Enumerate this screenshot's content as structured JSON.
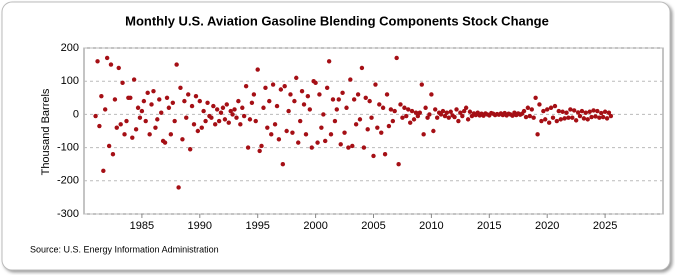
{
  "chart_data": {
    "type": "scatter",
    "title": "Monthly U.S. Aviation Gasoline Blending Components Stock Change",
    "y_label": "Thousand Barrels",
    "source": "Source: U.S. Energy Information Administration",
    "color": "#a50f15",
    "grid": true,
    "xlim": [
      1980,
      2030
    ],
    "xticks": [
      1985,
      1990,
      1995,
      2000,
      2005,
      2010,
      2015,
      2020,
      2025
    ],
    "ylim": [
      -300,
      200
    ],
    "yticks": [
      200,
      100,
      0,
      -100,
      -200,
      -300
    ],
    "x": [
      1981,
      1981.17,
      1981.33,
      1981.5,
      1981.67,
      1981.83,
      1982,
      1982.17,
      1982.33,
      1982.5,
      1982.67,
      1982.83,
      1983,
      1983.17,
      1983.33,
      1983.5,
      1983.67,
      1983.83,
      1984,
      1984.17,
      1984.33,
      1984.5,
      1984.67,
      1984.83,
      1985,
      1985.17,
      1985.33,
      1985.5,
      1985.67,
      1985.83,
      1986,
      1986.17,
      1986.33,
      1986.5,
      1986.67,
      1986.83,
      1987,
      1987.17,
      1987.33,
      1987.5,
      1987.67,
      1987.83,
      1988,
      1988.17,
      1988.33,
      1988.5,
      1988.67,
      1988.83,
      1989,
      1989.17,
      1989.33,
      1989.5,
      1989.67,
      1989.83,
      1990,
      1990.17,
      1990.33,
      1990.5,
      1990.67,
      1990.83,
      1991,
      1991.17,
      1991.33,
      1991.5,
      1991.67,
      1991.83,
      1992,
      1992.17,
      1992.33,
      1992.5,
      1992.67,
      1992.83,
      1993,
      1993.17,
      1993.33,
      1993.5,
      1993.67,
      1993.83,
      1994,
      1994.17,
      1994.33,
      1994.5,
      1994.67,
      1994.83,
      1995,
      1995.17,
      1995.33,
      1995.5,
      1995.67,
      1995.83,
      1996,
      1996.17,
      1996.33,
      1996.5,
      1996.67,
      1996.83,
      1997,
      1997.17,
      1997.33,
      1997.5,
      1997.67,
      1997.83,
      1998,
      1998.17,
      1998.33,
      1998.5,
      1998.67,
      1998.83,
      1999,
      1999.17,
      1999.33,
      1999.5,
      1999.67,
      1999.83,
      2000,
      2000.17,
      2000.33,
      2000.5,
      2000.67,
      2000.83,
      2001,
      2001.17,
      2001.33,
      2001.5,
      2001.67,
      2001.83,
      2002,
      2002.17,
      2002.33,
      2002.5,
      2002.67,
      2002.83,
      2003,
      2003.17,
      2003.33,
      2003.5,
      2003.67,
      2003.83,
      2004,
      2004.17,
      2004.33,
      2004.5,
      2004.67,
      2004.83,
      2005,
      2005.17,
      2005.33,
      2005.5,
      2005.67,
      2005.83,
      2006,
      2006.17,
      2006.33,
      2006.5,
      2006.67,
      2006.83,
      2007,
      2007.17,
      2007.33,
      2007.5,
      2007.67,
      2007.83,
      2008,
      2008.17,
      2008.33,
      2008.5,
      2008.67,
      2008.83,
      2009,
      2009.17,
      2009.33,
      2009.5,
      2009.67,
      2009.83,
      2010,
      2010.17,
      2010.33,
      2010.5,
      2010.67,
      2010.83,
      2011,
      2011.17,
      2011.33,
      2011.5,
      2011.67,
      2011.83,
      2012,
      2012.17,
      2012.33,
      2012.5,
      2012.67,
      2012.83,
      2013,
      2013.17,
      2013.33,
      2013.5,
      2013.67,
      2013.83,
      2014,
      2014.17,
      2014.33,
      2014.5,
      2014.67,
      2014.83,
      2015,
      2015.17,
      2015.33,
      2015.5,
      2015.67,
      2015.83,
      2016,
      2016.17,
      2016.33,
      2016.5,
      2016.67,
      2016.83,
      2017,
      2017.17,
      2017.33,
      2017.5,
      2017.67,
      2017.83,
      2018,
      2018.17,
      2018.33,
      2018.5,
      2018.67,
      2018.83,
      2019,
      2019.17,
      2019.33,
      2019.5,
      2019.67,
      2019.83,
      2020,
      2020.17,
      2020.33,
      2020.5,
      2020.67,
      2020.83,
      2021,
      2021.17,
      2021.33,
      2021.5,
      2021.67,
      2021.83,
      2022,
      2022.17,
      2022.33,
      2022.5,
      2022.67,
      2022.83,
      2023,
      2023.17,
      2023.33,
      2023.5,
      2023.67,
      2023.83,
      2024,
      2024.17,
      2024.33,
      2024.5,
      2024.67,
      2024.83,
      2025,
      2025.17,
      2025.33,
      2025.5
    ],
    "values": [
      -5,
      160,
      -35,
      55,
      -170,
      15,
      170,
      -95,
      150,
      -120,
      45,
      -40,
      140,
      -30,
      95,
      -60,
      -20,
      50,
      50,
      -70,
      105,
      -45,
      20,
      -10,
      10,
      40,
      -20,
      65,
      -60,
      30,
      70,
      -40,
      -15,
      45,
      5,
      -80,
      -85,
      50,
      20,
      -60,
      35,
      -20,
      150,
      -220,
      80,
      -75,
      40,
      -10,
      60,
      -105,
      25,
      -30,
      55,
      -50,
      40,
      -40,
      10,
      -20,
      35,
      -5,
      -10,
      25,
      -30,
      15,
      -20,
      5,
      20,
      -15,
      30,
      -25,
      10,
      0,
      15,
      -10,
      40,
      -30,
      20,
      -5,
      85,
      -100,
      -15,
      35,
      60,
      -20,
      135,
      -110,
      -95,
      20,
      80,
      -40,
      40,
      -60,
      90,
      -30,
      25,
      -75,
      75,
      -150,
      85,
      -50,
      10,
      60,
      -55,
      40,
      110,
      -85,
      -20,
      70,
      30,
      -60,
      55,
      15,
      -100,
      100,
      95,
      -85,
      60,
      -40,
      0,
      -80,
      80,
      160,
      -60,
      45,
      -20,
      15,
      45,
      -90,
      65,
      -55,
      20,
      -100,
      105,
      -95,
      45,
      -30,
      60,
      -15,
      140,
      -100,
      50,
      -45,
      40,
      -10,
      -125,
      90,
      -40,
      30,
      -55,
      20,
      -120,
      60,
      -35,
      15,
      -20,
      10,
      170,
      -150,
      30,
      -10,
      20,
      -5,
      15,
      -25,
      10,
      -15,
      5,
      -5,
      5,
      90,
      -60,
      20,
      -10,
      0,
      60,
      -50,
      15,
      -10,
      5,
      0,
      10,
      -5,
      5,
      -10,
      8,
      -3,
      -8,
      15,
      -20,
      5,
      -5,
      10,
      20,
      -15,
      8,
      -5,
      3,
      -2,
      5,
      -3,
      2,
      -4,
      3,
      0,
      -3,
      4,
      2,
      -2,
      1,
      -1,
      3,
      -2,
      4,
      -3,
      2,
      0,
      -4,
      5,
      -2,
      3,
      -1,
      2,
      10,
      -8,
      20,
      -5,
      15,
      -10,
      50,
      -60,
      30,
      -20,
      10,
      -15,
      15,
      -25,
      20,
      -10,
      25,
      -20,
      10,
      -15,
      8,
      -12,
      5,
      -10,
      15,
      -10,
      12,
      -18,
      6,
      -5,
      10,
      -12,
      5,
      -15,
      8,
      -8,
      12,
      -6,
      10,
      -10,
      4,
      -8,
      8,
      -12,
      5,
      -5
    ]
  }
}
